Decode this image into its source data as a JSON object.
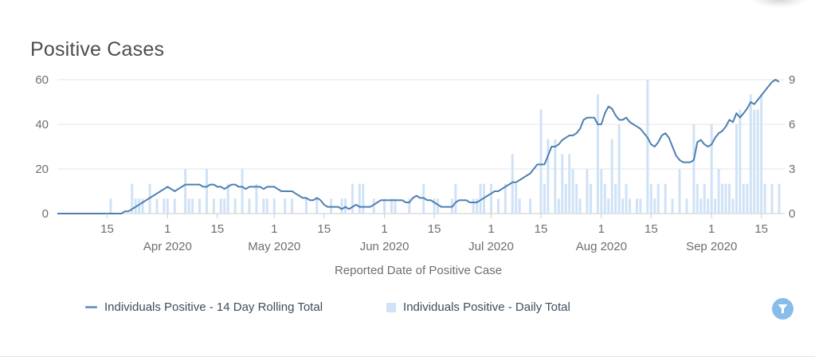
{
  "title": "Positive Cases",
  "x_axis_title": "Reported Date of Positive Case",
  "axes": {
    "left": {
      "max": 60,
      "ticks": [
        0,
        20,
        40,
        60
      ]
    },
    "right": {
      "max": 9,
      "ticks": [
        0,
        3,
        6,
        9
      ]
    }
  },
  "x_ticks": [
    {
      "i": 14,
      "day": "15",
      "month": ""
    },
    {
      "i": 31,
      "day": "1",
      "month": "Apr 2020"
    },
    {
      "i": 45,
      "day": "15",
      "month": ""
    },
    {
      "i": 61,
      "day": "1",
      "month": "May 2020"
    },
    {
      "i": 75,
      "day": "15",
      "month": ""
    },
    {
      "i": 92,
      "day": "1",
      "month": "Jun 2020"
    },
    {
      "i": 106,
      "day": "15",
      "month": ""
    },
    {
      "i": 122,
      "day": "1",
      "month": "Jul 2020"
    },
    {
      "i": 136,
      "day": "15",
      "month": ""
    },
    {
      "i": 153,
      "day": "1",
      "month": "Aug 2020"
    },
    {
      "i": 167,
      "day": "15",
      "month": ""
    },
    {
      "i": 184,
      "day": "1",
      "month": "Sep 2020"
    },
    {
      "i": 198,
      "day": "15",
      "month": ""
    }
  ],
  "legend": {
    "items": [
      {
        "label": "Individuals Positive - 14 Day Rolling Total",
        "marker": "line"
      },
      {
        "label": "Individuals Positive - Daily Total",
        "marker": "square"
      }
    ]
  },
  "filter_button": {
    "icon": "funnel-icon"
  },
  "colors": {
    "line": "#4e7fb1",
    "legend_line": "#6f9cce",
    "bar": "#cfe2f6",
    "grid": "#e4e4e4",
    "axis": "#c9c9c9",
    "tick_text": "#6e6e6e",
    "title_text": "#4d4d4d",
    "legend_text": "#3e4b5e",
    "filter_bg": "#89bde9",
    "filter_icon": "#ffffff"
  },
  "chart_data": {
    "type": "line+bar",
    "title": "Positive Cases",
    "xlabel": "Reported Date of Positive Case",
    "start_date": "2020-03-01",
    "end_date": "2020-09-20",
    "x_unit": "day",
    "ylim_left": [
      0,
      60
    ],
    "ylim_right": [
      0,
      9
    ],
    "grid": "horizontal",
    "legend_position": "bottom",
    "series": [
      {
        "name": "Individuals Positive - 14 Day Rolling Total",
        "type": "line",
        "axis": "left",
        "values": [
          0,
          0,
          0,
          0,
          0,
          0,
          0,
          0,
          0,
          0,
          0,
          0,
          0,
          0,
          0,
          0,
          0,
          0,
          0,
          1,
          1,
          2,
          3,
          4,
          5,
          6,
          7,
          8,
          9,
          10,
          11,
          12,
          11,
          10,
          11,
          12,
          13,
          13,
          13,
          13,
          13,
          12,
          12,
          13,
          13,
          12,
          12,
          11,
          12,
          13,
          13,
          12,
          12,
          11,
          12,
          12,
          12,
          12,
          11,
          12,
          12,
          12,
          11,
          10,
          10,
          10,
          10,
          9,
          8,
          7,
          7,
          6,
          6,
          7,
          6,
          4,
          3,
          3,
          3,
          3,
          2,
          3,
          2,
          3,
          4,
          3,
          3,
          3,
          3,
          4,
          5,
          6,
          6,
          6,
          6,
          6,
          6,
          6,
          5,
          5,
          7,
          8,
          7,
          7,
          6,
          6,
          5,
          4,
          3,
          3,
          3,
          3,
          5,
          6,
          6,
          6,
          5,
          5,
          5,
          6,
          7,
          8,
          9,
          10,
          10,
          11,
          12,
          13,
          14,
          14,
          15,
          16,
          17,
          18,
          20,
          22,
          22,
          22,
          26,
          30,
          30,
          31,
          33,
          34,
          35,
          35,
          36,
          38,
          42,
          43,
          43,
          43,
          40,
          40,
          45,
          48,
          47,
          44,
          42,
          42,
          43,
          41,
          40,
          39,
          38,
          36,
          34,
          31,
          30,
          32,
          35,
          36,
          34,
          30,
          26,
          24,
          23,
          23,
          23,
          24,
          32,
          33,
          31,
          30,
          31,
          34,
          36,
          37,
          39,
          42,
          41,
          45,
          43,
          45,
          47,
          50,
          49,
          51,
          53,
          55,
          57,
          59,
          60,
          59
        ]
      },
      {
        "name": "Individuals Positive - Daily Total",
        "type": "bar",
        "axis": "right",
        "values": [
          0,
          0,
          0,
          0,
          0,
          0,
          0,
          0,
          0,
          0,
          0,
          0,
          0,
          0,
          0,
          1,
          0,
          0,
          0,
          0,
          0,
          2,
          1,
          1,
          1,
          0,
          2,
          0,
          1,
          0,
          1,
          1,
          0,
          1,
          0,
          0,
          3,
          1,
          1,
          0,
          1,
          0,
          3,
          0,
          1,
          0,
          1,
          1,
          2,
          0,
          1,
          0,
          3,
          0,
          1,
          0,
          2,
          0,
          1,
          1,
          0,
          1,
          0,
          0,
          1,
          0,
          1,
          0,
          0,
          0,
          1,
          0,
          0,
          1,
          0,
          0,
          0,
          1,
          0,
          0,
          1,
          1,
          0,
          2,
          0,
          2,
          2,
          0,
          0,
          1,
          0,
          0,
          1,
          0,
          1,
          1,
          0,
          0,
          0,
          1,
          0,
          0,
          0,
          2,
          0,
          0,
          1,
          1,
          0,
          0,
          0,
          1,
          2,
          0,
          0,
          0,
          0,
          1,
          1,
          2,
          2,
          0,
          2,
          0,
          1,
          0,
          2,
          0,
          4,
          2,
          1,
          0,
          0,
          1,
          0,
          0,
          7,
          2,
          5,
          0,
          5,
          1,
          4,
          2,
          4,
          3,
          2,
          1,
          0,
          3,
          2,
          0,
          8,
          3,
          2,
          1,
          5,
          2,
          6,
          1,
          2,
          1,
          0,
          1,
          1,
          0,
          9,
          2,
          1,
          2,
          0,
          2,
          0,
          1,
          0,
          3,
          0,
          1,
          0,
          6,
          2,
          1,
          2,
          1,
          6,
          1,
          3,
          2,
          2,
          2,
          1,
          6,
          7,
          2,
          2,
          8,
          7,
          7,
          8,
          2,
          0,
          2,
          0,
          2
        ]
      }
    ]
  }
}
